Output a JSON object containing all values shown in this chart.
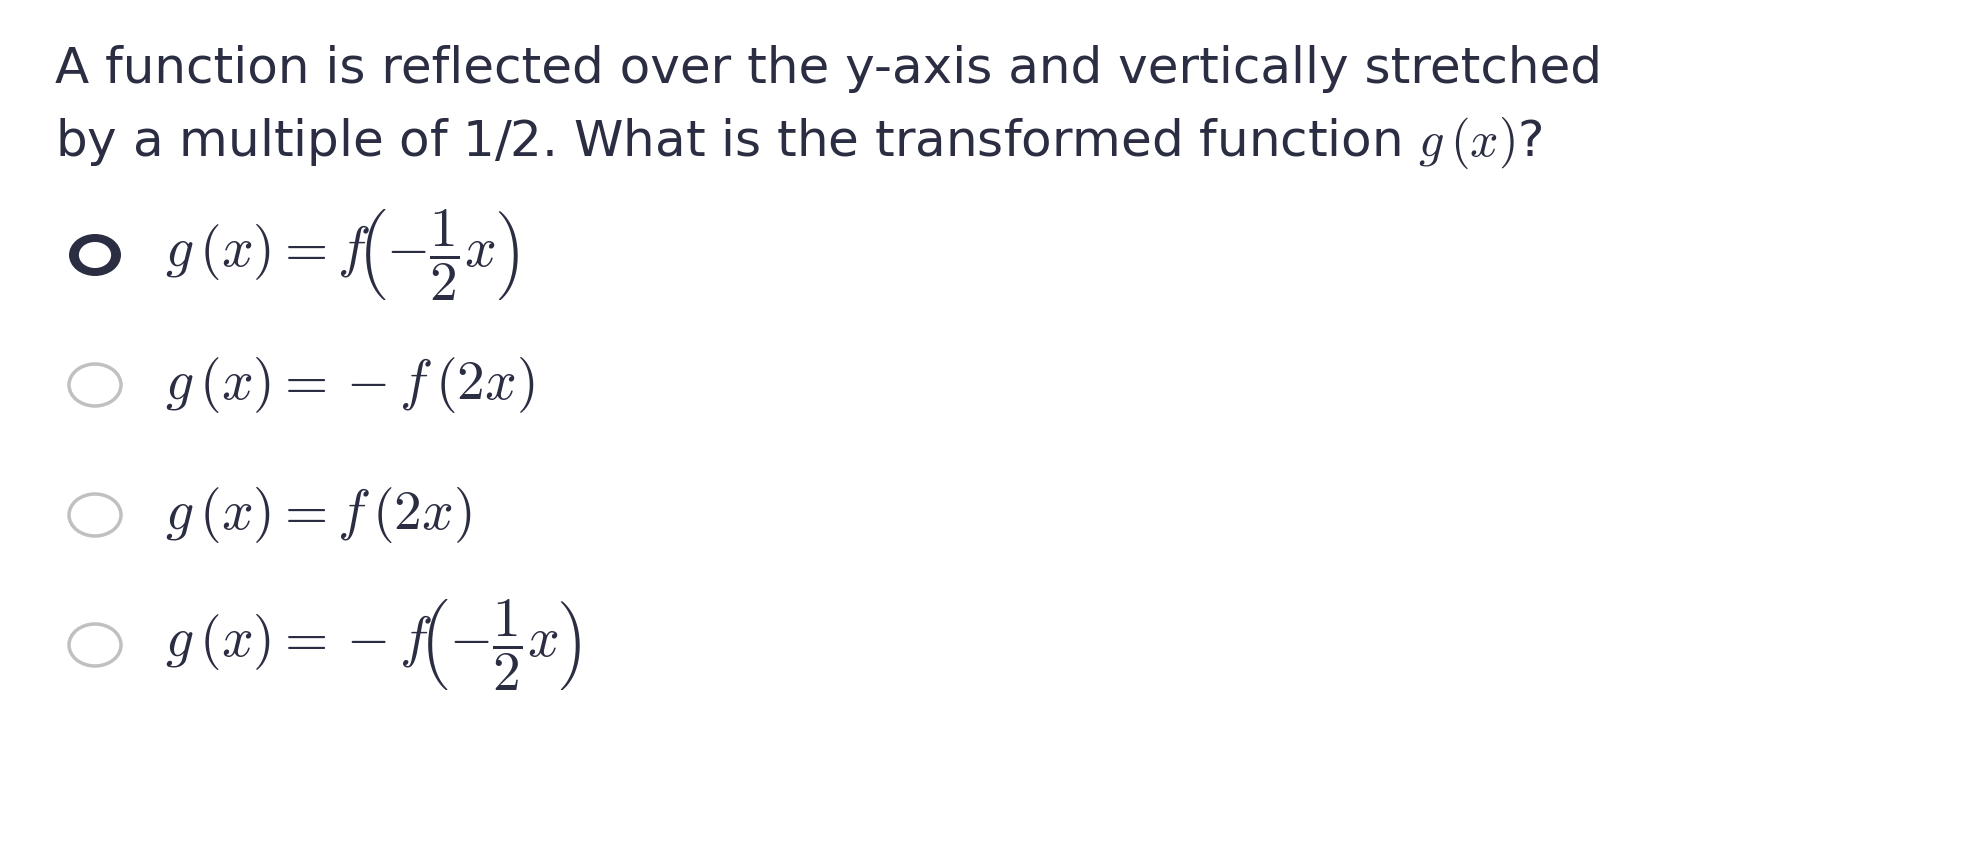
{
  "title_line1": "A function is reflected over the y-axis and vertically stretched",
  "title_line2": "by a multiple of 1/2. What is the transformed function $g\\,(x)$?",
  "options": [
    {
      "latex": "$g\\,(x) = f\\!\\left(-\\dfrac{1}{2}x\\right)$",
      "selected": true
    },
    {
      "latex": "$g\\,(x) = -f\\,(2x)$",
      "selected": false
    },
    {
      "latex": "$g\\,(x) = f\\,(2x)$",
      "selected": false
    },
    {
      "latex": "$g\\,(x) = -f\\!\\left(-\\dfrac{1}{2}x\\right)$",
      "selected": false
    }
  ],
  "background_color": "#ffffff",
  "text_color": "#2b2d42",
  "title_fontsize": 36,
  "option_fontsize": 40,
  "fig_width": 19.78,
  "fig_height": 8.67
}
